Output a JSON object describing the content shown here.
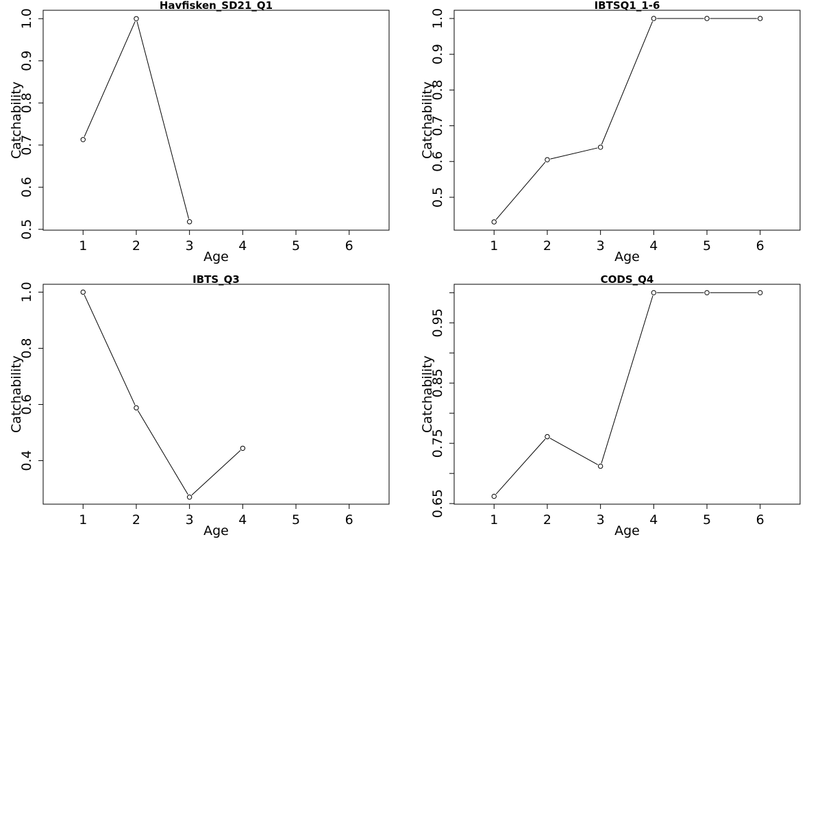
{
  "chart_data": [
    {
      "type": "line",
      "title": "Havfisken_SD21_Q1",
      "xlabel": "Age",
      "ylabel": "Catchability",
      "x_ticks": [
        1,
        2,
        3,
        4,
        5,
        6
      ],
      "y_ticks": [
        0.5,
        0.6,
        0.7,
        0.8,
        0.9,
        1.0
      ],
      "y_tick_labels": [
        "0.5",
        "0.6",
        "0.7",
        "0.8",
        "0.9",
        "1.0"
      ],
      "xlim": [
        0.25,
        6.75
      ],
      "ylim": [
        0.498,
        1.02
      ],
      "x": [
        1,
        2,
        3
      ],
      "y": [
        0.713,
        1.0,
        0.518
      ]
    },
    {
      "type": "line",
      "title": "IBTSQ1_1-6",
      "xlabel": "Age",
      "ylabel": "Catchability",
      "x_ticks": [
        1,
        2,
        3,
        4,
        5,
        6
      ],
      "y_ticks": [
        0.5,
        0.6,
        0.7,
        0.8,
        0.9,
        1.0
      ],
      "y_tick_labels": [
        "0.5",
        "0.6",
        "0.7",
        "0.8",
        "0.9",
        "1.0"
      ],
      "xlim": [
        0.25,
        6.75
      ],
      "ylim": [
        0.408,
        1.023
      ],
      "x": [
        1,
        2,
        3,
        4,
        5,
        6
      ],
      "y": [
        0.431,
        0.605,
        0.64,
        1.0,
        1.0,
        1.0
      ]
    },
    {
      "type": "line",
      "title": "IBTS_Q3",
      "xlabel": "Age",
      "ylabel": "Catchability",
      "x_ticks": [
        1,
        2,
        3,
        4,
        5,
        6
      ],
      "y_ticks": [
        0.4,
        0.6,
        0.8,
        1.0
      ],
      "y_tick_labels": [
        "0.4",
        "0.6",
        "0.8",
        "1.0"
      ],
      "xlim": [
        0.25,
        6.75
      ],
      "ylim": [
        0.245,
        1.028
      ],
      "x": [
        1,
        2,
        3,
        4
      ],
      "y": [
        1.0,
        0.588,
        0.27,
        0.444
      ]
    },
    {
      "type": "line",
      "title": "CODS_Q4",
      "xlabel": "Age",
      "ylabel": "Catchability",
      "x_ticks": [
        1,
        2,
        3,
        4,
        5,
        6
      ],
      "y_ticks": [
        0.65,
        0.7,
        0.75,
        0.8,
        0.85,
        0.9,
        0.95,
        1.0
      ],
      "y_tick_labels": [
        "0.65",
        "",
        "0.75",
        "",
        "0.85",
        "",
        "0.95",
        ""
      ],
      "xlim": [
        0.25,
        6.75
      ],
      "ylim": [
        0.649,
        1.014
      ],
      "x": [
        1,
        2,
        3,
        4,
        5,
        6
      ],
      "y": [
        0.662,
        0.761,
        0.712,
        1.0,
        1.0,
        1.0
      ]
    }
  ]
}
